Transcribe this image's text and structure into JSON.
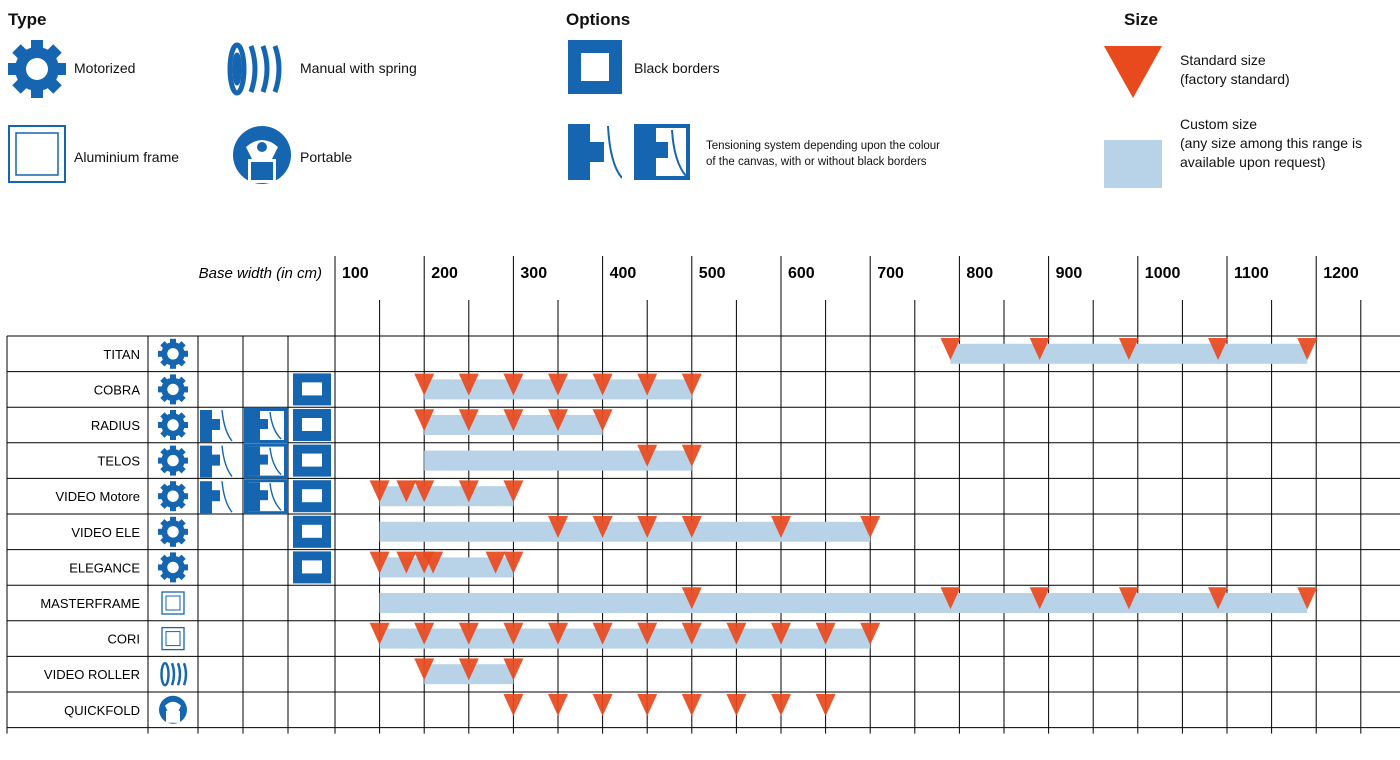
{
  "legend": {
    "type_heading": "Type",
    "options_heading": "Options",
    "size_heading": "Size",
    "motorized": "Motorized",
    "manual_spring": "Manual with spring",
    "aluminium_frame": "Aluminium frame",
    "portable": "Portable",
    "black_borders": "Black borders",
    "tensioning_line1": "Tensioning system depending upon the colour",
    "tensioning_line2": "of the canvas, with or without black borders",
    "standard_line1": "Standard size",
    "standard_line2": "(factory standard)",
    "custom_line1": "Custom size",
    "custom_line2": "(any size among this range is",
    "custom_line3": "available upon request)"
  },
  "colors": {
    "icon_blue": "#1565b0",
    "marker_orange": "#e8491d",
    "range_blue": "#b8d2e8",
    "grid": "#000000"
  },
  "chart_data": {
    "type": "table",
    "xlabel": "Base width (in cm)",
    "ticks": [
      100,
      200,
      300,
      400,
      500,
      600,
      700,
      800,
      900,
      1000,
      1100,
      1200
    ],
    "xlim": [
      100,
      1300
    ],
    "rows": [
      {
        "name": "TITAN",
        "type_icon": "gear-icon",
        "tension_a": false,
        "tension_b": false,
        "black_borders": false,
        "range": [
          790,
          1190
        ],
        "standard": [
          790,
          890,
          990,
          1090,
          1190
        ]
      },
      {
        "name": "COBRA",
        "type_icon": "gear-icon",
        "tension_a": false,
        "tension_b": false,
        "black_borders": true,
        "range": [
          200,
          500
        ],
        "standard": [
          200,
          250,
          300,
          350,
          400,
          450,
          500
        ]
      },
      {
        "name": "RADIUS",
        "type_icon": "gear-icon",
        "tension_a": true,
        "tension_b": true,
        "black_borders": true,
        "range": [
          200,
          400
        ],
        "standard": [
          200,
          250,
          300,
          350,
          400
        ]
      },
      {
        "name": "TELOS",
        "type_icon": "gear-icon",
        "tension_a": true,
        "tension_b": true,
        "black_borders": true,
        "range": [
          200,
          500
        ],
        "standard": [
          450,
          500
        ]
      },
      {
        "name": "VIDEO Motore",
        "type_icon": "gear-icon",
        "tension_a": true,
        "tension_b": true,
        "black_borders": true,
        "range": [
          150,
          300
        ],
        "standard": [
          150,
          180,
          200,
          250,
          300
        ]
      },
      {
        "name": "VIDEO ELE",
        "type_icon": "gear-icon",
        "tension_a": false,
        "tension_b": false,
        "black_borders": true,
        "range": [
          150,
          700
        ],
        "standard": [
          350,
          400,
          450,
          500,
          600,
          700
        ]
      },
      {
        "name": "ELEGANCE",
        "type_icon": "gear-icon",
        "tension_a": false,
        "tension_b": false,
        "black_borders": true,
        "range": [
          150,
          300
        ],
        "standard": [
          150,
          180,
          200,
          210,
          280,
          300
        ]
      },
      {
        "name": "MASTERFRAME",
        "type_icon": "frame-icon",
        "tension_a": false,
        "tension_b": false,
        "black_borders": false,
        "range": [
          150,
          1190
        ],
        "standard": [
          500,
          790,
          890,
          990,
          1090,
          1190
        ]
      },
      {
        "name": "CORI",
        "type_icon": "frame-icon",
        "tension_a": false,
        "tension_b": false,
        "black_borders": false,
        "range": [
          150,
          700
        ],
        "standard": [
          150,
          200,
          250,
          300,
          350,
          400,
          450,
          500,
          550,
          600,
          650,
          700
        ]
      },
      {
        "name": "VIDEO ROLLER",
        "type_icon": "spring-icon",
        "tension_a": false,
        "tension_b": false,
        "black_borders": false,
        "range": [
          200,
          300
        ],
        "standard": [
          200,
          250,
          300
        ]
      },
      {
        "name": "QUICKFOLD",
        "type_icon": "portable-icon",
        "tension_a": false,
        "tension_b": false,
        "black_borders": false,
        "range": null,
        "standard": [
          300,
          350,
          400,
          450,
          500,
          550,
          600,
          650
        ]
      }
    ]
  }
}
